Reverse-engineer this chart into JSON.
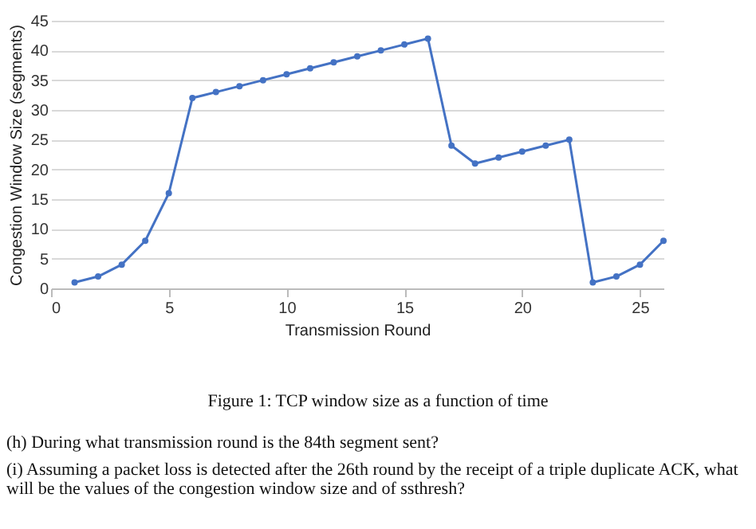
{
  "chart_data": {
    "type": "line",
    "xlabel": "Transmission Round",
    "ylabel": "Congestion Window Size (segments)",
    "x": [
      1,
      2,
      3,
      4,
      5,
      6,
      7,
      8,
      9,
      10,
      11,
      12,
      13,
      14,
      15,
      16,
      17,
      18,
      19,
      20,
      21,
      22,
      23,
      24,
      25,
      26
    ],
    "series": [
      {
        "color": "#4472c4",
        "values": [
          1,
          2,
          4,
          8,
          16,
          32,
          33,
          34,
          35,
          36,
          37,
          38,
          39,
          40,
          41,
          42,
          24,
          21,
          22,
          23,
          24,
          25,
          1,
          2,
          4,
          8
        ]
      }
    ],
    "xlim": [
      0,
      26
    ],
    "xticks": [
      0,
      5,
      10,
      15,
      20,
      25
    ],
    "ylim": [
      0,
      45
    ],
    "yticks": [
      0,
      5,
      10,
      15,
      20,
      25,
      30,
      35,
      40,
      45
    ],
    "grid": "y",
    "marker": "circle",
    "line_style": "solid",
    "annotations": [
      "Figure 1: TCP window size as a function of time",
      "(h) During what transmission round is the 84th segment sent?",
      "(i) Assuming a packet loss is detected after the 26th round by the receipt of a triple duplicate ACK, what will be the values of the congestion window size and of ssthresh?"
    ]
  }
}
